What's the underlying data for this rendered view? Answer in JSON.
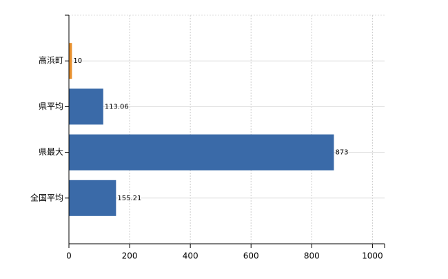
{
  "chart_data": {
    "type": "bar",
    "orientation": "horizontal",
    "categories": [
      "高浜町",
      "県平均",
      "県最大",
      "全国平均"
    ],
    "values": [
      10,
      113.06,
      873,
      155.21
    ],
    "colors": [
      "#e8912f",
      "#3a6aa8",
      "#3a6aa8",
      "#3a6aa8"
    ],
    "xlim": [
      0,
      1040
    ],
    "xticks": [
      0,
      200,
      400,
      600,
      800,
      1000
    ],
    "grid": true
  }
}
